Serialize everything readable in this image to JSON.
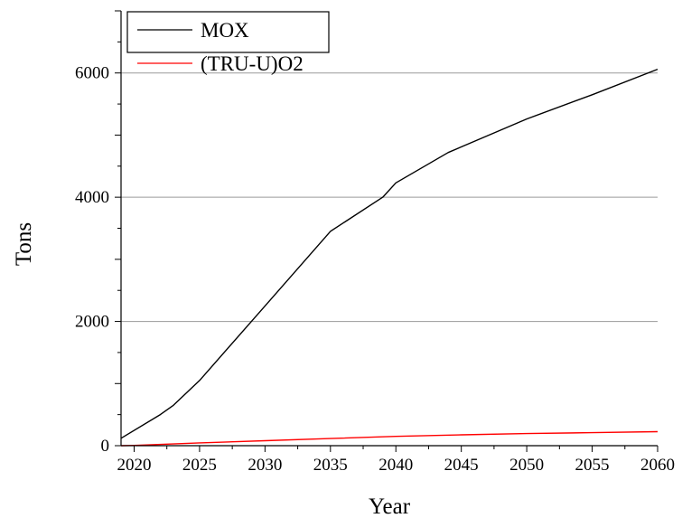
{
  "chart_data": {
    "type": "line",
    "title": "",
    "xlabel": "Year",
    "ylabel": "Tons",
    "xlim": [
      2019,
      2060
    ],
    "ylim": [
      0,
      7000
    ],
    "x_ticks": [
      2020,
      2025,
      2030,
      2035,
      2040,
      2045,
      2050,
      2055,
      2060
    ],
    "y_ticks": [
      0,
      2000,
      4000,
      6000
    ],
    "grid": "horizontal",
    "legend_position": "top-left",
    "series": [
      {
        "name": "MOX",
        "color": "#000000",
        "x": [
          2019,
          2022,
          2023,
          2025,
          2030,
          2035,
          2039,
          2040,
          2044,
          2050,
          2055,
          2060
        ],
        "y": [
          120,
          500,
          650,
          1050,
          2250,
          3450,
          4000,
          4230,
          4720,
          5260,
          5650,
          6060
        ]
      },
      {
        "name": "(TRU-U)O2",
        "color": "#ff0000",
        "x": [
          2019,
          2020,
          2025,
          2030,
          2035,
          2040,
          2045,
          2050,
          2055,
          2060
        ],
        "y": [
          0,
          5,
          45,
          80,
          115,
          150,
          175,
          195,
          210,
          225
        ]
      }
    ]
  }
}
